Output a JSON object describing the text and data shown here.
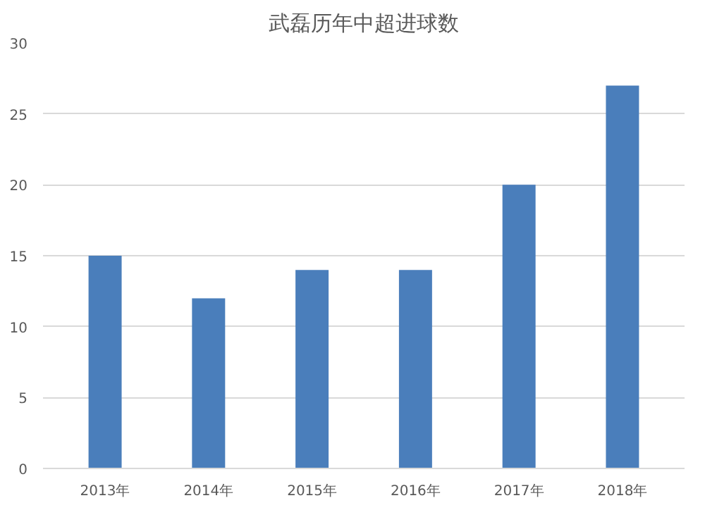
{
  "chart_data": {
    "type": "bar",
    "title": "武磊历年中超进球数",
    "categories": [
      "2013年",
      "2014年",
      "2015年",
      "2016年",
      "2017年",
      "2018年"
    ],
    "values": [
      15,
      12,
      14,
      14,
      20,
      27
    ],
    "color": "#4a7ebb",
    "ylim": [
      0,
      30
    ],
    "yticks": [
      0,
      5,
      10,
      15,
      20,
      25,
      30
    ],
    "grid": "y"
  }
}
